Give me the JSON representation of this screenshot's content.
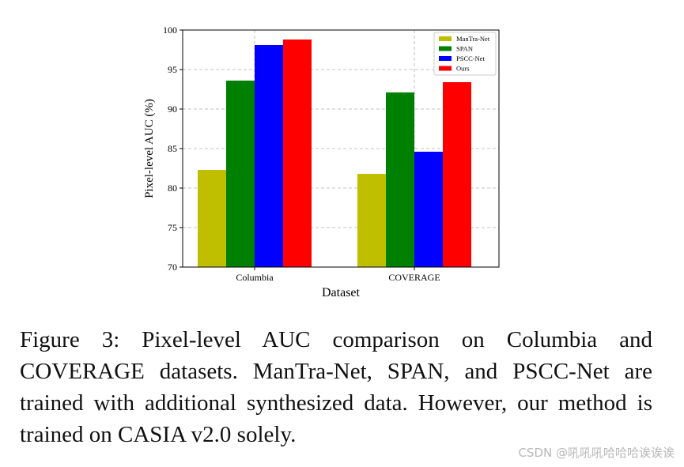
{
  "chart_data": {
    "type": "bar",
    "categories": [
      "Columbia",
      "COVERAGE"
    ],
    "series": [
      {
        "name": "ManTra-Net",
        "color": "#bfbf00",
        "values": [
          82.3,
          81.8
        ]
      },
      {
        "name": "SPAN",
        "color": "#008000",
        "values": [
          93.6,
          92.1
        ]
      },
      {
        "name": "PSCC-Net",
        "color": "#0000ff",
        "values": [
          98.1,
          84.6
        ]
      },
      {
        "name": "Ours",
        "color": "#ff0000",
        "values": [
          98.8,
          93.4
        ]
      }
    ],
    "xlabel": "Dataset",
    "ylabel": "Pixel-level AUC (%)",
    "ylim": [
      70,
      100
    ],
    "yticks": [
      70,
      75,
      80,
      85,
      90,
      95,
      100
    ],
    "grid": true,
    "legend_position": "top-right"
  },
  "caption": "Figure 3:  Pixel-level AUC comparison on Columbia and COVERAGE datasets. ManTra-Net, SPAN, and PSCC-Net are trained with additional synthesized data. However, our method is trained on CASIA v2.0 solely.",
  "watermark": "CSDN @吼吼吼哈哈哈诶诶诶"
}
